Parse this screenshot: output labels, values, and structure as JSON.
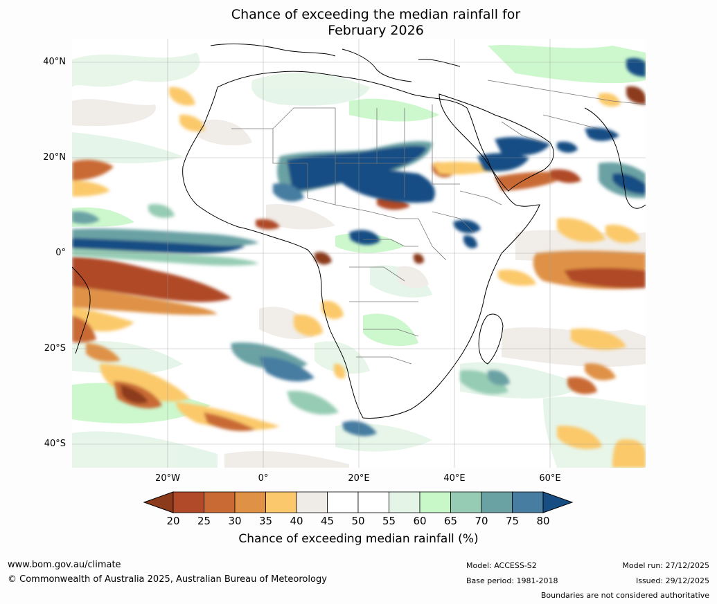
{
  "title": {
    "line1": "Chance of exceeding the median rainfall for",
    "line2": "February 2026"
  },
  "map": {
    "region": "Africa",
    "latitude_labels": [
      "40°N",
      "20°N",
      "0°",
      "20°S",
      "40°S"
    ],
    "longitude_labels": [
      "20°W",
      "0°",
      "20°E",
      "40°E",
      "60°E"
    ]
  },
  "colorbar": {
    "tick_labels": [
      "20",
      "25",
      "30",
      "35",
      "40",
      "45",
      "50",
      "55",
      "60",
      "65",
      "70",
      "75",
      "80"
    ],
    "colors": [
      "#8c3a1c",
      "#b04a28",
      "#c96a34",
      "#df9246",
      "#fbc96b",
      "#efebe6",
      "#ffffff",
      "#ffffff",
      "#e4f5e7",
      "#c8f7c8",
      "#96ccb4",
      "#6aa2a4",
      "#477da0",
      "#164e84"
    ],
    "title": "Chance of exceeding median rainfall (%)"
  },
  "footer": {
    "website": "www.bom.gov.au/climate",
    "copyright": "© Commonwealth of Australia 2025, Australian Bureau of Meteorology",
    "model": "Model: ACCESS-S2",
    "base_period": "Base period: 1981-2018",
    "model_run": "Model run: 27/12/2025",
    "issued": "Issued: 29/12/2025",
    "disclaimer": "Boundaries are not considered authoritative"
  }
}
